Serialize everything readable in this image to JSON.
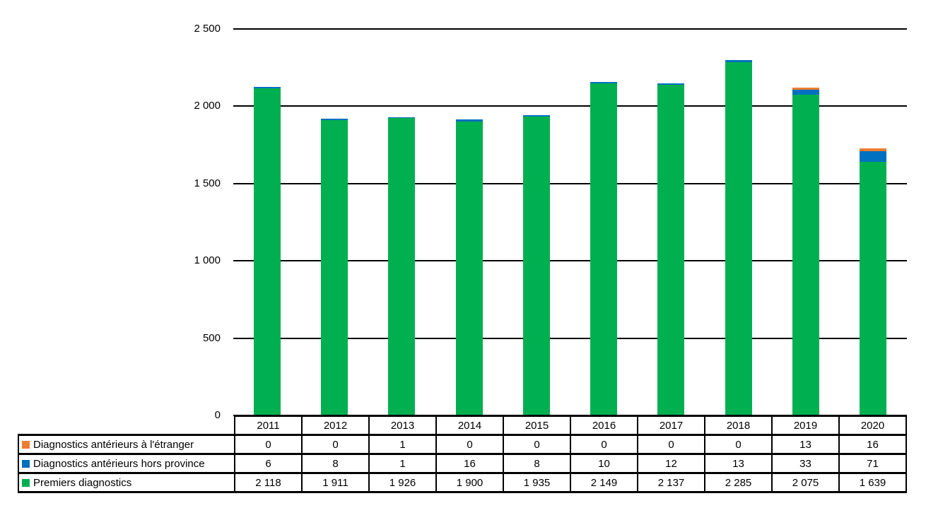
{
  "chart_data": {
    "type": "bar",
    "stacked": true,
    "title": "",
    "xlabel": "",
    "ylabel": "",
    "categories": [
      "2011",
      "2012",
      "2013",
      "2014",
      "2015",
      "2016",
      "2017",
      "2018",
      "2019",
      "2020"
    ],
    "series": [
      {
        "name": "Diagnostics antérieurs à l'étranger",
        "color": "#ED7D31",
        "values": [
          0,
          0,
          1,
          0,
          0,
          0,
          0,
          0,
          13,
          16
        ]
      },
      {
        "name": "Diagnostics antérieurs hors province",
        "color": "#0070C0",
        "values": [
          6,
          8,
          1,
          16,
          8,
          10,
          12,
          13,
          33,
          71
        ]
      },
      {
        "name": "Premiers diagnostics",
        "color": "#00B050",
        "values": [
          2118,
          1911,
          1926,
          1900,
          1935,
          2149,
          2137,
          2285,
          2075,
          1639
        ]
      }
    ],
    "ylim": [
      0,
      2500
    ],
    "yticks": [
      0,
      500,
      1000,
      1500,
      2000,
      2500
    ],
    "grid": true,
    "gridline_color": "#000000",
    "legend_position": "table-left",
    "number_format": "space-thousands"
  }
}
